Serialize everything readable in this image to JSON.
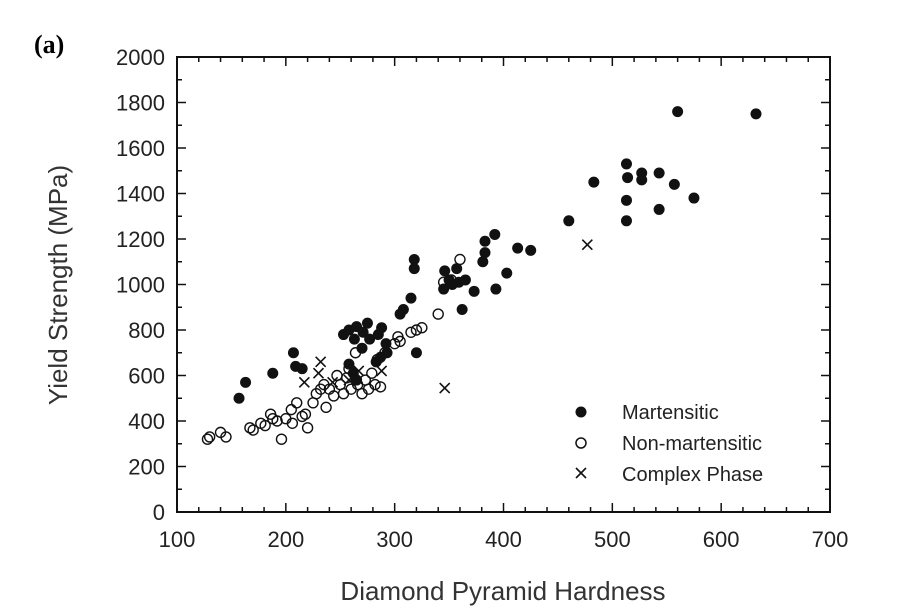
{
  "chart_data": {
    "type": "scatter",
    "panel_label": "(a)",
    "xlabel": "Diamond Pyramid Hardness",
    "ylabel": "Yield Strength (MPa)",
    "xlim": [
      100,
      700
    ],
    "ylim": [
      0,
      2000
    ],
    "x_ticks": [
      100,
      200,
      300,
      400,
      500,
      600,
      700
    ],
    "y_ticks": [
      0,
      200,
      400,
      600,
      800,
      1000,
      1200,
      1400,
      1600,
      1800,
      2000
    ],
    "x_tick_labels": [
      "100",
      "200",
      "300",
      "400",
      "500",
      "600",
      "700"
    ],
    "y_tick_labels": [
      "0",
      "200",
      "400",
      "600",
      "800",
      "1000",
      "1200",
      "1400",
      "1600",
      "1800",
      "2000"
    ],
    "grid": false,
    "legend_position": "bottom-right",
    "series": [
      {
        "name": "Martensitic",
        "marker": "filled-circle",
        "points": [
          [
            157,
            500
          ],
          [
            163,
            570
          ],
          [
            188,
            610
          ],
          [
            207,
            700
          ],
          [
            209,
            640
          ],
          [
            215,
            630
          ],
          [
            253,
            780
          ],
          [
            258,
            800
          ],
          [
            263,
            760
          ],
          [
            265,
            815
          ],
          [
            275,
            830
          ],
          [
            271,
            790
          ],
          [
            277,
            760
          ],
          [
            285,
            780
          ],
          [
            288,
            810
          ],
          [
            292,
            740
          ],
          [
            287,
            680
          ],
          [
            283,
            660
          ],
          [
            258,
            650
          ],
          [
            262,
            610
          ],
          [
            265,
            580
          ],
          [
            270,
            720
          ],
          [
            293,
            700
          ],
          [
            305,
            870
          ],
          [
            308,
            890
          ],
          [
            315,
            940
          ],
          [
            318,
            1110
          ],
          [
            318,
            1070
          ],
          [
            320,
            700
          ],
          [
            345,
            980
          ],
          [
            346,
            1060
          ],
          [
            350,
            1020
          ],
          [
            353,
            1000
          ],
          [
            357,
            1070
          ],
          [
            359,
            1010
          ],
          [
            362,
            890
          ],
          [
            365,
            1020
          ],
          [
            373,
            970
          ],
          [
            381,
            1100
          ],
          [
            383,
            1190
          ],
          [
            383,
            1140
          ],
          [
            392,
            1220
          ],
          [
            393,
            980
          ],
          [
            403,
            1050
          ],
          [
            413,
            1160
          ],
          [
            425,
            1150
          ],
          [
            460,
            1280
          ],
          [
            483,
            1450
          ],
          [
            513,
            1530
          ],
          [
            514,
            1470
          ],
          [
            513,
            1370
          ],
          [
            513,
            1280
          ],
          [
            527,
            1490
          ],
          [
            527,
            1460
          ],
          [
            543,
            1490
          ],
          [
            543,
            1330
          ],
          [
            557,
            1440
          ],
          [
            560,
            1760
          ],
          [
            575,
            1380
          ],
          [
            632,
            1750
          ]
        ]
      },
      {
        "name": "Non-martensitic",
        "marker": "open-circle",
        "points": [
          [
            128,
            320
          ],
          [
            130,
            330
          ],
          [
            140,
            350
          ],
          [
            145,
            330
          ],
          [
            167,
            370
          ],
          [
            170,
            360
          ],
          [
            177,
            390
          ],
          [
            181,
            380
          ],
          [
            186,
            430
          ],
          [
            188,
            410
          ],
          [
            192,
            400
          ],
          [
            196,
            320
          ],
          [
            200,
            410
          ],
          [
            205,
            450
          ],
          [
            206,
            390
          ],
          [
            210,
            480
          ],
          [
            215,
            420
          ],
          [
            218,
            430
          ],
          [
            220,
            370
          ],
          [
            225,
            480
          ],
          [
            228,
            520
          ],
          [
            235,
            560
          ],
          [
            237,
            460
          ],
          [
            240,
            540
          ],
          [
            244,
            510
          ],
          [
            247,
            600
          ],
          [
            250,
            560
          ],
          [
            253,
            520
          ],
          [
            256,
            590
          ],
          [
            260,
            540
          ],
          [
            264,
            700
          ],
          [
            266,
            560
          ],
          [
            270,
            520
          ],
          [
            273,
            580
          ],
          [
            276,
            540
          ],
          [
            279,
            610
          ],
          [
            282,
            560
          ],
          [
            284,
            670
          ],
          [
            287,
            550
          ],
          [
            291,
            700
          ],
          [
            300,
            740
          ],
          [
            303,
            770
          ],
          [
            305,
            750
          ],
          [
            315,
            790
          ],
          [
            320,
            800
          ],
          [
            325,
            810
          ],
          [
            340,
            870
          ],
          [
            345,
            1010
          ],
          [
            352,
            1020
          ],
          [
            360,
            1110
          ],
          [
            258,
            630
          ],
          [
            232,
            540
          ]
        ]
      },
      {
        "name": "Complex Phase",
        "marker": "cross",
        "points": [
          [
            217,
            570
          ],
          [
            232,
            660
          ],
          [
            230,
            610
          ],
          [
            243,
            570
          ],
          [
            258,
            580
          ],
          [
            267,
            620
          ],
          [
            288,
            620
          ],
          [
            346,
            545
          ],
          [
            477,
            1175
          ]
        ]
      }
    ]
  }
}
